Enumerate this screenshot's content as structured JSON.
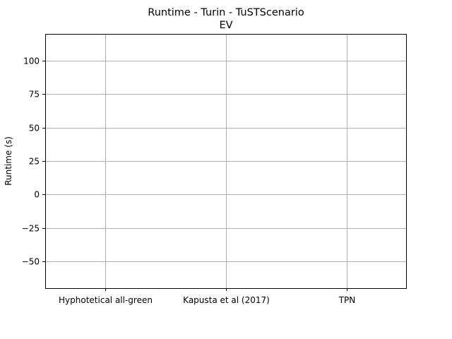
{
  "chart_data": {
    "type": "bar",
    "title": "Runtime  - Turin - TuSTScenario",
    "subtitle": "EV",
    "xlabel": "",
    "ylabel": "Runtime (s)",
    "categories": [
      "Hyphotetical all-green",
      "Kapusta et al (2017)",
      "TPN"
    ],
    "series": [],
    "ylim": [
      -70,
      120
    ],
    "yticks": [
      -50,
      -25,
      0,
      25,
      50,
      75,
      100
    ],
    "ytick_labels": [
      "−50",
      "−25",
      "0",
      "25",
      "50",
      "75",
      "100"
    ],
    "grid": true,
    "legend": "none",
    "colors": {
      "grid": "#b0b0b0",
      "axes": "#000000",
      "background": "#ffffff"
    }
  }
}
